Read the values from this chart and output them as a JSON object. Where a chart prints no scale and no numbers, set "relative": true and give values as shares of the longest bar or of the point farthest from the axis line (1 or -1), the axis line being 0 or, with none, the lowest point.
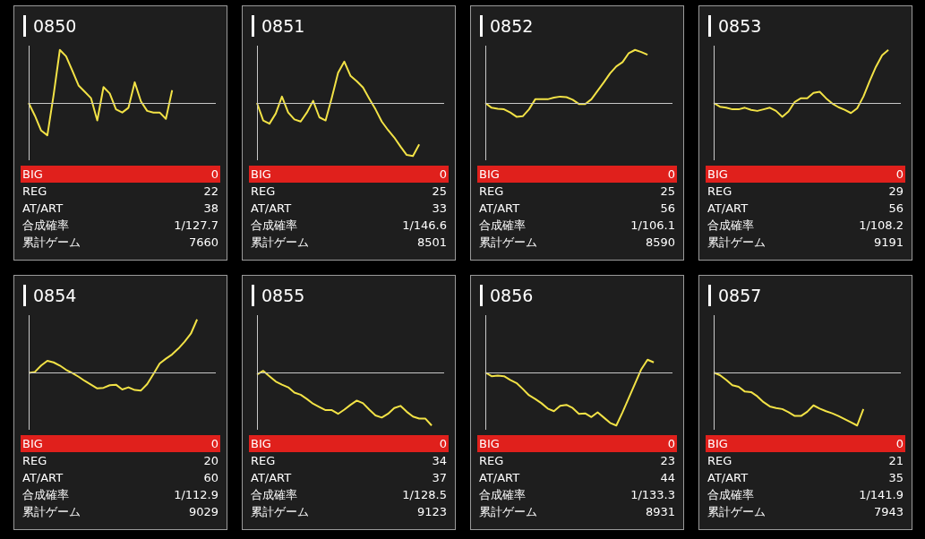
{
  "chart_data": [
    {
      "type": "line",
      "title": "0850",
      "relative": true,
      "color": "#f2e246",
      "categories": [
        null,
        null,
        null,
        null,
        null,
        null,
        null,
        null,
        null,
        null,
        null,
        null,
        null,
        null,
        null,
        null,
        null,
        null,
        null,
        null,
        null,
        null,
        null,
        null,
        null,
        null,
        null,
        null,
        null,
        null,
        null
      ],
      "values": [
        0,
        -0.24,
        -0.52,
        -0.61,
        0.15,
        1,
        0.88,
        0.61,
        0.33,
        0.21,
        0.09,
        -0.33,
        0.3,
        0.18,
        -0.12,
        -0.18,
        -0.09,
        0.39,
        0.03,
        -0.15,
        -0.18,
        -0.18,
        -0.3,
        0.24,
        null,
        null,
        null,
        null,
        null,
        null,
        null
      ],
      "annotations": [
        "BIG",
        "0",
        "REG",
        "22",
        "AT/ART",
        "38",
        "合成確率",
        "1/127.7",
        "累計ゲーム",
        "7660"
      ]
    },
    {
      "type": "line",
      "title": "0851",
      "relative": true,
      "color": "#f2e246",
      "categories": [
        null,
        null,
        null,
        null,
        null,
        null,
        null,
        null,
        null,
        null,
        null,
        null,
        null,
        null,
        null,
        null,
        null,
        null,
        null,
        null,
        null,
        null,
        null,
        null,
        null,
        null,
        null,
        null,
        null,
        null,
        null
      ],
      "values": [
        0,
        -0.33,
        -0.39,
        -0.2,
        0.12,
        -0.18,
        -0.31,
        -0.35,
        -0.18,
        0.04,
        -0.27,
        -0.33,
        0.1,
        0.57,
        0.78,
        0.51,
        0.41,
        0.29,
        0.08,
        -0.12,
        -0.35,
        -0.51,
        -0.65,
        -0.82,
        -0.98,
        -1,
        -0.78,
        null,
        null,
        null,
        null
      ],
      "annotations": [
        "BIG",
        "0",
        "REG",
        "25",
        "AT/ART",
        "33",
        "合成確率",
        "1/146.6",
        "累計ゲーム",
        "8501"
      ]
    },
    {
      "type": "line",
      "title": "0852",
      "relative": true,
      "color": "#f2e246",
      "categories": [
        null,
        null,
        null,
        null,
        null,
        null,
        null,
        null,
        null,
        null,
        null,
        null,
        null,
        null,
        null,
        null,
        null,
        null,
        null,
        null,
        null,
        null,
        null,
        null,
        null,
        null,
        null,
        null,
        null,
        null,
        null
      ],
      "values": [
        0,
        -0.09,
        -0.11,
        -0.12,
        -0.18,
        -0.26,
        -0.25,
        -0.12,
        0.07,
        0.07,
        0.07,
        0.1,
        0.12,
        0.11,
        0.06,
        -0.02,
        -0.02,
        0.07,
        0.23,
        0.39,
        0.56,
        0.69,
        0.77,
        0.94,
        1,
        0.96,
        0.91,
        null,
        null,
        null,
        null
      ],
      "annotations": [
        "BIG",
        "0",
        "REG",
        "25",
        "AT/ART",
        "56",
        "合成確率",
        "1/106.1",
        "累計ゲーム",
        "8590"
      ]
    },
    {
      "type": "line",
      "title": "0853",
      "relative": true,
      "color": "#f2e246",
      "categories": [
        null,
        null,
        null,
        null,
        null,
        null,
        null,
        null,
        null,
        null,
        null,
        null,
        null,
        null,
        null,
        null,
        null,
        null,
        null,
        null,
        null,
        null,
        null,
        null,
        null,
        null,
        null,
        null,
        null,
        null,
        null
      ],
      "values": [
        0,
        -0.07,
        -0.09,
        -0.12,
        -0.12,
        -0.09,
        -0.13,
        -0.15,
        -0.12,
        -0.09,
        -0.15,
        -0.26,
        -0.16,
        0.02,
        0.09,
        0.09,
        0.19,
        0.21,
        0.09,
        -0.01,
        -0.08,
        -0.13,
        -0.19,
        -0.1,
        0.12,
        0.41,
        0.68,
        0.9,
        1,
        null,
        null
      ],
      "annotations": [
        "BIG",
        "0",
        "REG",
        "29",
        "AT/ART",
        "56",
        "合成確率",
        "1/108.2",
        "累計ゲーム",
        "9191"
      ]
    },
    {
      "type": "line",
      "title": "0854",
      "relative": true,
      "color": "#f2e246",
      "categories": [
        null,
        null,
        null,
        null,
        null,
        null,
        null,
        null,
        null,
        null,
        null,
        null,
        null,
        null,
        null,
        null,
        null,
        null,
        null,
        null,
        null,
        null,
        null,
        null,
        null,
        null,
        null,
        null,
        null,
        null,
        null
      ],
      "values": [
        -0.01,
        0.01,
        0.13,
        0.22,
        0.19,
        0.13,
        0.05,
        -0.01,
        -0.08,
        -0.16,
        -0.23,
        -0.3,
        -0.29,
        -0.24,
        -0.23,
        -0.32,
        -0.28,
        -0.33,
        -0.34,
        -0.22,
        -0.03,
        0.17,
        0.26,
        0.34,
        0.45,
        0.58,
        0.73,
        1,
        null,
        null,
        null
      ],
      "annotations": [
        "BIG",
        "0",
        "REG",
        "20",
        "AT/ART",
        "60",
        "合成確率",
        "1/112.9",
        "累計ゲーム",
        "9029"
      ]
    },
    {
      "type": "line",
      "title": "0855",
      "relative": true,
      "color": "#f2e246",
      "categories": [
        null,
        null,
        null,
        null,
        null,
        null,
        null,
        null,
        null,
        null,
        null,
        null,
        null,
        null,
        null,
        null,
        null,
        null,
        null,
        null,
        null,
        null,
        null,
        null,
        null,
        null,
        null,
        null,
        null,
        null,
        null
      ],
      "values": [
        -0.04,
        0.03,
        -0.07,
        -0.17,
        -0.23,
        -0.28,
        -0.38,
        -0.42,
        -0.5,
        -0.59,
        -0.65,
        -0.71,
        -0.71,
        -0.78,
        -0.7,
        -0.61,
        -0.53,
        -0.58,
        -0.7,
        -0.81,
        -0.85,
        -0.78,
        -0.67,
        -0.63,
        -0.74,
        -0.83,
        -0.87,
        -0.87,
        -1,
        null,
        null
      ],
      "annotations": [
        "BIG",
        "0",
        "REG",
        "34",
        "AT/ART",
        "37",
        "合成確率",
        "1/128.5",
        "累計ゲーム",
        "9123"
      ]
    },
    {
      "type": "line",
      "title": "0856",
      "relative": true,
      "color": "#f2e246",
      "categories": [
        null,
        null,
        null,
        null,
        null,
        null,
        null,
        null,
        null,
        null,
        null,
        null,
        null,
        null,
        null,
        null,
        null,
        null,
        null,
        null,
        null,
        null,
        null,
        null,
        null,
        null,
        null,
        null,
        null,
        null,
        null
      ],
      "values": [
        0,
        -0.07,
        -0.06,
        -0.07,
        -0.14,
        -0.2,
        -0.31,
        -0.43,
        -0.5,
        -0.58,
        -0.68,
        -0.73,
        -0.63,
        -0.61,
        -0.67,
        -0.78,
        -0.77,
        -0.84,
        -0.75,
        -0.85,
        -0.95,
        -1,
        -0.75,
        -0.48,
        -0.21,
        0.06,
        0.24,
        0.19,
        null,
        null,
        null
      ],
      "annotations": [
        "BIG",
        "0",
        "REG",
        "23",
        "AT/ART",
        "44",
        "合成確率",
        "1/133.3",
        "累計ゲーム",
        "8931"
      ]
    },
    {
      "type": "line",
      "title": "0857",
      "relative": true,
      "color": "#f2e246",
      "categories": [
        null,
        null,
        null,
        null,
        null,
        null,
        null,
        null,
        null,
        null,
        null,
        null,
        null,
        null,
        null,
        null,
        null,
        null,
        null,
        null,
        null,
        null,
        null,
        null,
        null,
        null,
        null,
        null,
        null,
        null,
        null
      ],
      "values": [
        0,
        -0.05,
        -0.14,
        -0.24,
        -0.27,
        -0.36,
        -0.37,
        -0.45,
        -0.56,
        -0.64,
        -0.67,
        -0.69,
        -0.75,
        -0.82,
        -0.82,
        -0.74,
        -0.62,
        -0.68,
        -0.73,
        -0.77,
        -0.82,
        -0.88,
        -0.94,
        -1,
        -0.69,
        null,
        null,
        null,
        null,
        null,
        null
      ],
      "annotations": [
        "BIG",
        "0",
        "REG",
        "21",
        "AT/ART",
        "35",
        "合成確率",
        "1/141.9",
        "累計ゲーム",
        "7943"
      ]
    }
  ]
}
